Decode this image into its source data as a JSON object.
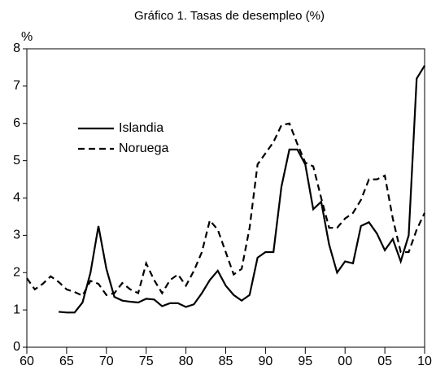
{
  "chart_data": {
    "type": "line",
    "title": "Gráfico 1. Tasas de desempleo (%)",
    "y_label": "%",
    "x": [
      1960,
      1961,
      1962,
      1963,
      1964,
      1965,
      1966,
      1967,
      1968,
      1969,
      1970,
      1971,
      1972,
      1973,
      1974,
      1975,
      1976,
      1977,
      1978,
      1979,
      1980,
      1981,
      1982,
      1983,
      1984,
      1985,
      1986,
      1987,
      1988,
      1989,
      1990,
      1991,
      1992,
      1993,
      1994,
      1995,
      1996,
      1997,
      1998,
      1999,
      2000,
      2001,
      2002,
      2003,
      2004,
      2005,
      2006,
      2007,
      2008,
      2009,
      2010
    ],
    "series": [
      {
        "name": "Islandia",
        "color": "#000000",
        "dash": "solid",
        "values": [
          null,
          null,
          null,
          null,
          0.95,
          0.93,
          0.93,
          1.2,
          2.0,
          3.25,
          2.1,
          1.35,
          1.25,
          1.22,
          1.2,
          1.3,
          1.28,
          1.1,
          1.18,
          1.18,
          1.08,
          1.15,
          1.45,
          1.8,
          2.05,
          1.65,
          1.4,
          1.25,
          1.4,
          2.4,
          2.55,
          2.55,
          4.3,
          5.3,
          5.3,
          4.9,
          3.7,
          3.9,
          2.75,
          2.0,
          2.3,
          2.25,
          3.25,
          3.35,
          3.05,
          2.6,
          2.9,
          2.3,
          3.0,
          7.2,
          7.55
        ]
      },
      {
        "name": "Noruega",
        "color": "#000000",
        "dash": "dashed",
        "values": [
          1.85,
          1.55,
          1.7,
          1.9,
          1.75,
          1.55,
          1.48,
          1.38,
          1.78,
          1.7,
          1.4,
          1.45,
          1.72,
          1.55,
          1.45,
          2.25,
          1.8,
          1.45,
          1.8,
          1.95,
          1.65,
          2.05,
          2.55,
          3.4,
          3.15,
          2.55,
          1.95,
          2.1,
          3.2,
          4.9,
          5.2,
          5.5,
          5.95,
          6.0,
          5.45,
          4.95,
          4.85,
          4.0,
          3.2,
          3.2,
          3.45,
          3.6,
          3.95,
          4.5,
          4.5,
          4.6,
          3.45,
          2.55,
          2.55,
          3.15,
          3.6
        ]
      }
    ],
    "xlim": [
      1960,
      2010
    ],
    "xticks": [
      {
        "value": 1960,
        "label": "60"
      },
      {
        "value": 1965,
        "label": "65"
      },
      {
        "value": 1970,
        "label": "70"
      },
      {
        "value": 1975,
        "label": "75"
      },
      {
        "value": 1980,
        "label": "80"
      },
      {
        "value": 1985,
        "label": "85"
      },
      {
        "value": 1990,
        "label": "90"
      },
      {
        "value": 1995,
        "label": "95"
      },
      {
        "value": 2000,
        "label": "00"
      },
      {
        "value": 2005,
        "label": "05"
      },
      {
        "value": 2010,
        "label": "10"
      }
    ],
    "ylim": [
      0,
      8
    ],
    "yticks": [
      0,
      1,
      2,
      3,
      4,
      5,
      6,
      7,
      8
    ],
    "legend": "upper left",
    "grid": false
  }
}
